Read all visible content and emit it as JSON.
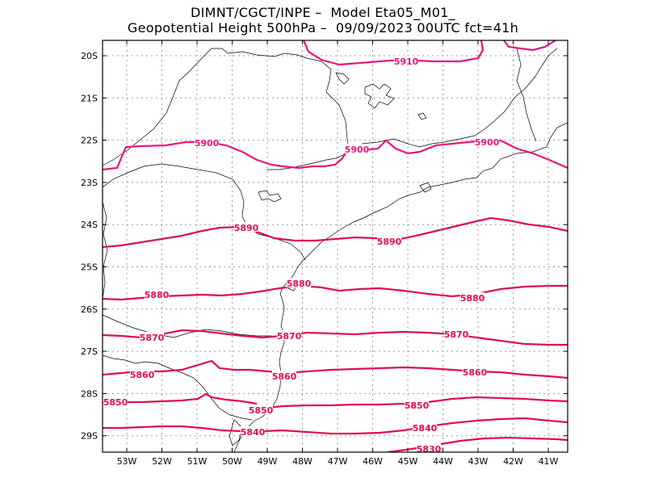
{
  "title": {
    "line1": "DIMNT/CGCT/INPE –  Model Eta05_M01_",
    "line2": "Geopotential Height 500hPa –  09/09/2023 00UTC fct=41h"
  },
  "axes": {
    "lat_labels": [
      "20S",
      "21S",
      "22S",
      "23S",
      "24S",
      "25S",
      "26S",
      "27S",
      "28S",
      "29S"
    ],
    "lon_labels": [
      "53W",
      "52W",
      "51W",
      "50W",
      "49W",
      "48W",
      "47W",
      "46W",
      "45W",
      "44W",
      "43W",
      "42W",
      "41W"
    ]
  },
  "colors": {
    "contour_magenta": "#e8187a",
    "contour_red": "#e0104a",
    "coast": "#000000",
    "grid": "#9a9a9a"
  },
  "contours": [
    {
      "level": 5910,
      "labels": [
        "5910"
      ]
    },
    {
      "level": 5900,
      "labels": [
        "5900",
        "5900",
        "5900"
      ]
    },
    {
      "level": 5890,
      "labels": [
        "5890",
        "5890"
      ]
    },
    {
      "level": 5880,
      "labels": [
        "5880",
        "5880",
        "5880"
      ]
    },
    {
      "level": 5870,
      "labels": [
        "5870",
        "5870",
        "5870"
      ]
    },
    {
      "level": 5860,
      "labels": [
        "5860",
        "5860",
        "5860"
      ]
    },
    {
      "level": 5850,
      "labels": [
        "5850",
        "5850",
        "5850"
      ]
    },
    {
      "level": 5840,
      "labels": [
        "5840",
        "5840"
      ]
    },
    {
      "level": 5830,
      "labels": [
        "5830"
      ]
    }
  ]
}
